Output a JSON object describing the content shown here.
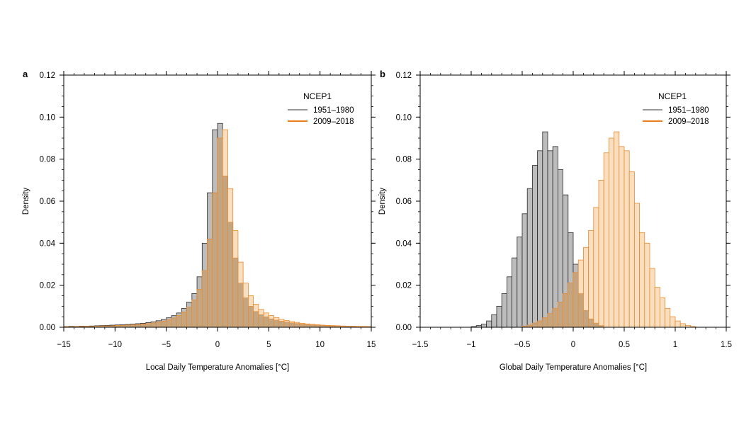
{
  "colors": {
    "early_fill": "#bdbdbd",
    "early_edge": "#2b2b2b",
    "late_fill": "#f9dfbf",
    "late_edge": "#ea8a2c",
    "overlap_fill": "#c4a57f",
    "legend_early_line": "#999999",
    "legend_late_line": "#ee7d1c"
  },
  "chart_data": [
    {
      "type": "bar",
      "panel_label": "a",
      "xlabel": "Local Daily Temperature Anomalies [°C]",
      "ylabel": "Density",
      "xlim": [
        -15,
        15
      ],
      "ylim": [
        0,
        0.12
      ],
      "xticks": [
        -15,
        -10,
        -5,
        0,
        5,
        10,
        15
      ],
      "xtick_labels": [
        "−15",
        "−10",
        "−5",
        "0",
        "5",
        "10",
        "15"
      ],
      "yticks": [
        0,
        0.02,
        0.04,
        0.06,
        0.08,
        0.1,
        0.12
      ],
      "ytick_labels": [
        "0.00",
        "0.02",
        "0.04",
        "0.06",
        "0.08",
        "0.10",
        "0.12"
      ],
      "legend": {
        "title": "NCEP1",
        "placement": "top-right"
      },
      "bin_width": 0.5,
      "series": [
        {
          "name": "1951–1980",
          "x": [
            -15,
            -14.5,
            -14,
            -13.5,
            -13,
            -12.5,
            -12,
            -11.5,
            -11,
            -10.5,
            -10,
            -9.5,
            -9,
            -8.5,
            -8,
            -7.5,
            -7,
            -6.5,
            -6,
            -5.5,
            -5,
            -4.5,
            -4,
            -3.5,
            -3,
            -2.5,
            -2,
            -1.5,
            -1,
            -0.5,
            0,
            0.5,
            1,
            1.5,
            2,
            2.5,
            3,
            3.5,
            4,
            4.5,
            5,
            5.5,
            6,
            6.5,
            7,
            7.5,
            8,
            8.5,
            9,
            9.5,
            10,
            10.5,
            11,
            11.5,
            12,
            12.5,
            13,
            13.5,
            14,
            14.5
          ],
          "values": [
            0.0003,
            0.0004,
            0.0004,
            0.0005,
            0.0005,
            0.0006,
            0.0007,
            0.0008,
            0.0009,
            0.001,
            0.0011,
            0.0012,
            0.0013,
            0.0015,
            0.0017,
            0.0019,
            0.0022,
            0.0026,
            0.0031,
            0.0037,
            0.0045,
            0.0055,
            0.0068,
            0.009,
            0.012,
            0.016,
            0.024,
            0.04,
            0.064,
            0.094,
            0.097,
            0.072,
            0.05,
            0.033,
            0.021,
            0.014,
            0.01,
            0.0075,
            0.006,
            0.005,
            0.004,
            0.0034,
            0.0029,
            0.0025,
            0.0021,
            0.0018,
            0.0015,
            0.0013,
            0.0011,
            0.001,
            0.0009,
            0.0007,
            0.0006,
            0.0005,
            0.0005,
            0.0004,
            0.0004,
            0.0003,
            0.0003,
            0.0003
          ]
        },
        {
          "name": "2009–2018",
          "x": [
            -15,
            -14.5,
            -14,
            -13.5,
            -13,
            -12.5,
            -12,
            -11.5,
            -11,
            -10.5,
            -10,
            -9.5,
            -9,
            -8.5,
            -8,
            -7.5,
            -7,
            -6.5,
            -6,
            -5.5,
            -5,
            -4.5,
            -4,
            -3.5,
            -3,
            -2.5,
            -2,
            -1.5,
            -1,
            -0.5,
            0,
            0.5,
            1,
            1.5,
            2,
            2.5,
            3,
            3.5,
            4,
            4.5,
            5,
            5.5,
            6,
            6.5,
            7,
            7.5,
            8,
            8.5,
            9,
            9.5,
            10,
            10.5,
            11,
            11.5,
            12,
            12.5,
            13,
            13.5,
            14,
            14.5
          ],
          "values": [
            0.0002,
            0.0002,
            0.0003,
            0.0003,
            0.0004,
            0.0004,
            0.0005,
            0.0006,
            0.0006,
            0.0007,
            0.0008,
            0.0009,
            0.001,
            0.0011,
            0.0013,
            0.0015,
            0.0017,
            0.002,
            0.0024,
            0.0029,
            0.0035,
            0.0044,
            0.0056,
            0.0072,
            0.0095,
            0.013,
            0.018,
            0.027,
            0.042,
            0.064,
            0.09,
            0.094,
            0.066,
            0.046,
            0.031,
            0.021,
            0.015,
            0.011,
            0.0085,
            0.0068,
            0.0056,
            0.0046,
            0.0038,
            0.0032,
            0.0027,
            0.0023,
            0.0019,
            0.0016,
            0.0014,
            0.0012,
            0.001,
            0.0009,
            0.0008,
            0.0007,
            0.0006,
            0.0005,
            0.0005,
            0.0004,
            0.0004,
            0.0003
          ]
        }
      ]
    },
    {
      "type": "bar",
      "panel_label": "b",
      "xlabel": "Global Daily Temperature Anomalies [°C]",
      "ylabel": "Density",
      "xlim": [
        -1.5,
        1.5
      ],
      "ylim": [
        0,
        0.12
      ],
      "xticks": [
        -1.5,
        -1,
        -0.5,
        0,
        0.5,
        1,
        1.5
      ],
      "xtick_labels": [
        "−1.5",
        "−1",
        "−0.5",
        "0",
        "0.5",
        "1",
        "1.5"
      ],
      "yticks": [
        0,
        0.02,
        0.04,
        0.06,
        0.08,
        0.1,
        0.12
      ],
      "ytick_labels": [
        "0.00",
        "0.02",
        "0.04",
        "0.06",
        "0.08",
        "0.10",
        "0.12"
      ],
      "legend": {
        "title": "NCEP1",
        "placement": "top-right"
      },
      "bin_width": 0.05,
      "series": [
        {
          "name": "1951–1980",
          "x": [
            -1,
            -0.95,
            -0.9,
            -0.85,
            -0.8,
            -0.75,
            -0.7,
            -0.65,
            -0.6,
            -0.55,
            -0.5,
            -0.45,
            -0.4,
            -0.35,
            -0.3,
            -0.25,
            -0.2,
            -0.15,
            -0.1,
            -0.05,
            0,
            0.05,
            0.1,
            0.15,
            0.2,
            0.25
          ],
          "values": [
            0.0003,
            0.0008,
            0.0015,
            0.003,
            0.006,
            0.01,
            0.016,
            0.024,
            0.033,
            0.043,
            0.054,
            0.066,
            0.077,
            0.084,
            0.093,
            0.084,
            0.086,
            0.075,
            0.063,
            0.045,
            0.03,
            0.016,
            0.008,
            0.004,
            0.002,
            0.0008
          ]
        },
        {
          "name": "2009–2018",
          "x": [
            -0.5,
            -0.45,
            -0.4,
            -0.35,
            -0.3,
            -0.25,
            -0.2,
            -0.15,
            -0.1,
            -0.05,
            0,
            0.05,
            0.1,
            0.15,
            0.2,
            0.25,
            0.3,
            0.35,
            0.4,
            0.45,
            0.5,
            0.55,
            0.6,
            0.65,
            0.7,
            0.75,
            0.8,
            0.85,
            0.9,
            0.95,
            1,
            1.05,
            1.1,
            1.15
          ],
          "values": [
            0.0005,
            0.001,
            0.002,
            0.003,
            0.0045,
            0.0065,
            0.009,
            0.012,
            0.016,
            0.021,
            0.026,
            0.032,
            0.038,
            0.046,
            0.057,
            0.07,
            0.083,
            0.09,
            0.093,
            0.086,
            0.084,
            0.074,
            0.059,
            0.045,
            0.04,
            0.028,
            0.019,
            0.014,
            0.009,
            0.005,
            0.003,
            0.0017,
            0.0008,
            0.0003
          ]
        }
      ]
    }
  ]
}
